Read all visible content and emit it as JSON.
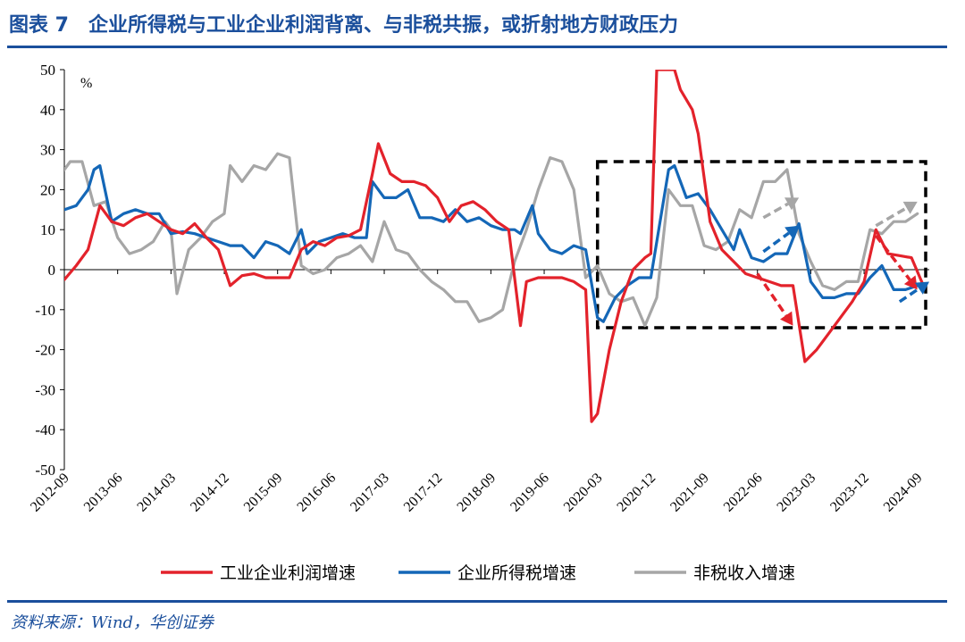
{
  "header": {
    "title": "图表 7　企业所得税与工业企业利润背离、与非税共振，或折射地方财政压力"
  },
  "footer": {
    "source": "资料来源：Wind，华创证券"
  },
  "colors": {
    "accent": "#1b4f9c",
    "profit": "#e3222b",
    "tax": "#1467b7",
    "nontax": "#a6a6a6"
  },
  "chart_data": {
    "type": "line",
    "title": "",
    "unit_label": "%",
    "xlabel": "",
    "ylabel": "%",
    "ylim": [
      -50,
      50
    ],
    "yticks": [
      50,
      40,
      30,
      20,
      10,
      0,
      -10,
      -20,
      -30,
      -40,
      -50
    ],
    "x_start": "2012-09",
    "x_end": "2024-11",
    "xticks": [
      "2012-09",
      "2013-06",
      "2014-03",
      "2014-12",
      "2015-09",
      "2016-06",
      "2017-03",
      "2017-12",
      "2018-09",
      "2019-06",
      "2020-03",
      "2020-12",
      "2021-09",
      "2022-06",
      "2023-03",
      "2023-12",
      "2024-09"
    ],
    "legend_position": "bottom",
    "series": [
      {
        "name": "工业企业利润增速",
        "color": "#e3222b",
        "points": [
          [
            "2012-09",
            -2.5
          ],
          [
            "2012-11",
            1
          ],
          [
            "2013-01",
            5
          ],
          [
            "2013-03",
            16
          ],
          [
            "2013-05",
            12
          ],
          [
            "2013-07",
            11
          ],
          [
            "2013-09",
            13
          ],
          [
            "2013-11",
            14
          ],
          [
            "2014-01",
            12
          ],
          [
            "2014-03",
            10
          ],
          [
            "2014-05",
            9
          ],
          [
            "2014-07",
            11.5
          ],
          [
            "2014-09",
            8
          ],
          [
            "2014-11",
            5
          ],
          [
            "2015-01",
            -4
          ],
          [
            "2015-03",
            -1.5
          ],
          [
            "2015-05",
            -1
          ],
          [
            "2015-07",
            -2
          ],
          [
            "2015-09",
            -2
          ],
          [
            "2015-11",
            -2
          ],
          [
            "2016-01",
            5
          ],
          [
            "2016-03",
            7
          ],
          [
            "2016-05",
            6
          ],
          [
            "2016-07",
            8
          ],
          [
            "2016-09",
            8.5
          ],
          [
            "2016-11",
            10
          ],
          [
            "2017-01",
            24
          ],
          [
            "2017-02",
            31.5
          ],
          [
            "2017-04",
            24
          ],
          [
            "2017-06",
            22
          ],
          [
            "2017-08",
            22
          ],
          [
            "2017-10",
            21
          ],
          [
            "2017-12",
            18
          ],
          [
            "2018-02",
            12
          ],
          [
            "2018-04",
            16
          ],
          [
            "2018-06",
            17
          ],
          [
            "2018-08",
            15
          ],
          [
            "2018-10",
            12
          ],
          [
            "2018-12",
            10
          ],
          [
            "2019-02",
            -14
          ],
          [
            "2019-03",
            -3
          ],
          [
            "2019-05",
            -2
          ],
          [
            "2019-07",
            -2
          ],
          [
            "2019-09",
            -2
          ],
          [
            "2019-11",
            -3
          ],
          [
            "2020-01",
            -5
          ],
          [
            "2020-02",
            -38
          ],
          [
            "2020-03",
            -36
          ],
          [
            "2020-05",
            -20
          ],
          [
            "2020-07",
            -8
          ],
          [
            "2020-09",
            0
          ],
          [
            "2020-11",
            3
          ],
          [
            "2020-12",
            4
          ],
          [
            "2021-01",
            50
          ],
          [
            "2021-04",
            50
          ],
          [
            "2021-05",
            45
          ],
          [
            "2021-07",
            40
          ],
          [
            "2021-08",
            34
          ],
          [
            "2021-10",
            12
          ],
          [
            "2021-12",
            5
          ],
          [
            "2022-02",
            2
          ],
          [
            "2022-04",
            -1
          ],
          [
            "2022-06",
            -2
          ],
          [
            "2022-08",
            -3
          ],
          [
            "2022-10",
            -4
          ],
          [
            "2022-12",
            -4
          ],
          [
            "2023-02",
            -23
          ],
          [
            "2023-04",
            -20
          ],
          [
            "2023-06",
            -16
          ],
          [
            "2023-08",
            -12
          ],
          [
            "2023-10",
            -8
          ],
          [
            "2023-12",
            -3
          ],
          [
            "2024-02",
            10
          ],
          [
            "2024-04",
            4
          ],
          [
            "2024-06",
            3.5
          ],
          [
            "2024-08",
            3
          ],
          [
            "2024-10",
            -4
          ]
        ]
      },
      {
        "name": "企业所得税增速",
        "color": "#1467b7",
        "points": [
          [
            "2012-09",
            15
          ],
          [
            "2012-11",
            16
          ],
          [
            "2013-01",
            20
          ],
          [
            "2013-02",
            25
          ],
          [
            "2013-03",
            26
          ],
          [
            "2013-05",
            12
          ],
          [
            "2013-07",
            14
          ],
          [
            "2013-09",
            15
          ],
          [
            "2013-11",
            14
          ],
          [
            "2014-01",
            14
          ],
          [
            "2014-03",
            9
          ],
          [
            "2014-05",
            9.5
          ],
          [
            "2014-07",
            9
          ],
          [
            "2014-09",
            8
          ],
          [
            "2014-11",
            7
          ],
          [
            "2015-01",
            6
          ],
          [
            "2015-03",
            6
          ],
          [
            "2015-05",
            3
          ],
          [
            "2015-07",
            7
          ],
          [
            "2015-09",
            6
          ],
          [
            "2015-11",
            4
          ],
          [
            "2016-01",
            10
          ],
          [
            "2016-02",
            4
          ],
          [
            "2016-04",
            7
          ],
          [
            "2016-06",
            8
          ],
          [
            "2016-08",
            9
          ],
          [
            "2016-10",
            8
          ],
          [
            "2016-12",
            8
          ],
          [
            "2017-01",
            22
          ],
          [
            "2017-03",
            18
          ],
          [
            "2017-05",
            18
          ],
          [
            "2017-07",
            20
          ],
          [
            "2017-09",
            13
          ],
          [
            "2017-11",
            13
          ],
          [
            "2018-01",
            12
          ],
          [
            "2018-03",
            15
          ],
          [
            "2018-05",
            12
          ],
          [
            "2018-07",
            13
          ],
          [
            "2018-09",
            11
          ],
          [
            "2018-11",
            10
          ],
          [
            "2019-01",
            10
          ],
          [
            "2019-02",
            9
          ],
          [
            "2019-04",
            16
          ],
          [
            "2019-05",
            9
          ],
          [
            "2019-07",
            5
          ],
          [
            "2019-09",
            4
          ],
          [
            "2019-11",
            6
          ],
          [
            "2020-01",
            5
          ],
          [
            "2020-03",
            -12
          ],
          [
            "2020-04",
            -13
          ],
          [
            "2020-06",
            -7
          ],
          [
            "2020-08",
            -4
          ],
          [
            "2020-10",
            -2
          ],
          [
            "2020-12",
            -2
          ],
          [
            "2021-03",
            25
          ],
          [
            "2021-04",
            26
          ],
          [
            "2021-06",
            18
          ],
          [
            "2021-08",
            19
          ],
          [
            "2021-10",
            15
          ],
          [
            "2021-12",
            10
          ],
          [
            "2022-02",
            5
          ],
          [
            "2022-03",
            10
          ],
          [
            "2022-05",
            3
          ],
          [
            "2022-07",
            2
          ],
          [
            "2022-09",
            4
          ],
          [
            "2022-11",
            4
          ],
          [
            "2023-01",
            11.5
          ],
          [
            "2023-03",
            -3
          ],
          [
            "2023-05",
            -7
          ],
          [
            "2023-07",
            -7
          ],
          [
            "2023-09",
            -6
          ],
          [
            "2023-11",
            -6
          ],
          [
            "2024-01",
            -2
          ],
          [
            "2024-03",
            1
          ],
          [
            "2024-05",
            -5
          ],
          [
            "2024-07",
            -5
          ],
          [
            "2024-09",
            -4
          ]
        ]
      },
      {
        "name": "非税收入增速",
        "color": "#a6a6a6",
        "points": [
          [
            "2012-09",
            25
          ],
          [
            "2012-10",
            27
          ],
          [
            "2012-12",
            27
          ],
          [
            "2013-02",
            16
          ],
          [
            "2013-04",
            17
          ],
          [
            "2013-06",
            8
          ],
          [
            "2013-08",
            4
          ],
          [
            "2013-10",
            5
          ],
          [
            "2013-12",
            7
          ],
          [
            "2014-02",
            12
          ],
          [
            "2014-03",
            10
          ],
          [
            "2014-04",
            -6
          ],
          [
            "2014-06",
            5
          ],
          [
            "2014-08",
            8
          ],
          [
            "2014-10",
            12
          ],
          [
            "2014-12",
            14
          ],
          [
            "2015-01",
            26
          ],
          [
            "2015-03",
            22
          ],
          [
            "2015-05",
            26
          ],
          [
            "2015-07",
            25
          ],
          [
            "2015-09",
            29
          ],
          [
            "2015-11",
            28
          ],
          [
            "2016-01",
            1
          ],
          [
            "2016-03",
            -1
          ],
          [
            "2016-05",
            0
          ],
          [
            "2016-07",
            3
          ],
          [
            "2016-09",
            4
          ],
          [
            "2016-11",
            6
          ],
          [
            "2017-01",
            2
          ],
          [
            "2017-03",
            12
          ],
          [
            "2017-05",
            5
          ],
          [
            "2017-07",
            4
          ],
          [
            "2017-09",
            0
          ],
          [
            "2017-11",
            -3
          ],
          [
            "2018-01",
            -5
          ],
          [
            "2018-03",
            -8
          ],
          [
            "2018-05",
            -8
          ],
          [
            "2018-07",
            -13
          ],
          [
            "2018-09",
            -12
          ],
          [
            "2018-11",
            -10
          ],
          [
            "2019-01",
            2
          ],
          [
            "2019-03",
            10
          ],
          [
            "2019-05",
            20
          ],
          [
            "2019-07",
            28
          ],
          [
            "2019-09",
            27
          ],
          [
            "2019-11",
            20
          ],
          [
            "2020-01",
            -2
          ],
          [
            "2020-03",
            1
          ],
          [
            "2020-05",
            -6
          ],
          [
            "2020-07",
            -8
          ],
          [
            "2020-09",
            -7
          ],
          [
            "2020-11",
            -14
          ],
          [
            "2021-01",
            -7
          ],
          [
            "2021-03",
            20
          ],
          [
            "2021-05",
            16
          ],
          [
            "2021-07",
            16
          ],
          [
            "2021-09",
            6
          ],
          [
            "2021-11",
            5
          ],
          [
            "2022-01",
            7
          ],
          [
            "2022-03",
            15
          ],
          [
            "2022-05",
            13
          ],
          [
            "2022-07",
            22
          ],
          [
            "2022-09",
            22
          ],
          [
            "2022-11",
            25
          ],
          [
            "2023-01",
            9
          ],
          [
            "2023-03",
            2
          ],
          [
            "2023-05",
            -4
          ],
          [
            "2023-07",
            -5
          ],
          [
            "2023-09",
            -3
          ],
          [
            "2023-11",
            -3
          ],
          [
            "2024-01",
            10
          ],
          [
            "2024-03",
            9
          ],
          [
            "2024-05",
            12
          ],
          [
            "2024-07",
            12
          ],
          [
            "2024-09",
            14
          ]
        ]
      }
    ],
    "annotations": {
      "highlight_box": {
        "x0": "2020-03",
        "x1": "2024-11",
        "y0": -14.5,
        "y1": 27,
        "style": "dashed",
        "color": "#000000"
      },
      "arrows": [
        {
          "from": [
            "2022-06",
            -1
          ],
          "to": [
            "2022-12",
            -14
          ],
          "color": "#e3222b"
        },
        {
          "from": [
            "2022-07",
            4.5
          ],
          "to": [
            "2023-01",
            11
          ],
          "color": "#1467b7"
        },
        {
          "from": [
            "2022-07",
            13
          ],
          "to": [
            "2023-01",
            18
          ],
          "color": "#a6a6a6"
        },
        {
          "from": [
            "2024-02",
            8.5
          ],
          "to": [
            "2024-09",
            -5
          ],
          "color": "#e3222b"
        },
        {
          "from": [
            "2024-02",
            11
          ],
          "to": [
            "2024-09",
            17
          ],
          "color": "#a6a6a6"
        },
        {
          "from": [
            "2024-06",
            -8
          ],
          "to": [
            "2024-11",
            -3
          ],
          "color": "#1467b7"
        }
      ]
    }
  }
}
